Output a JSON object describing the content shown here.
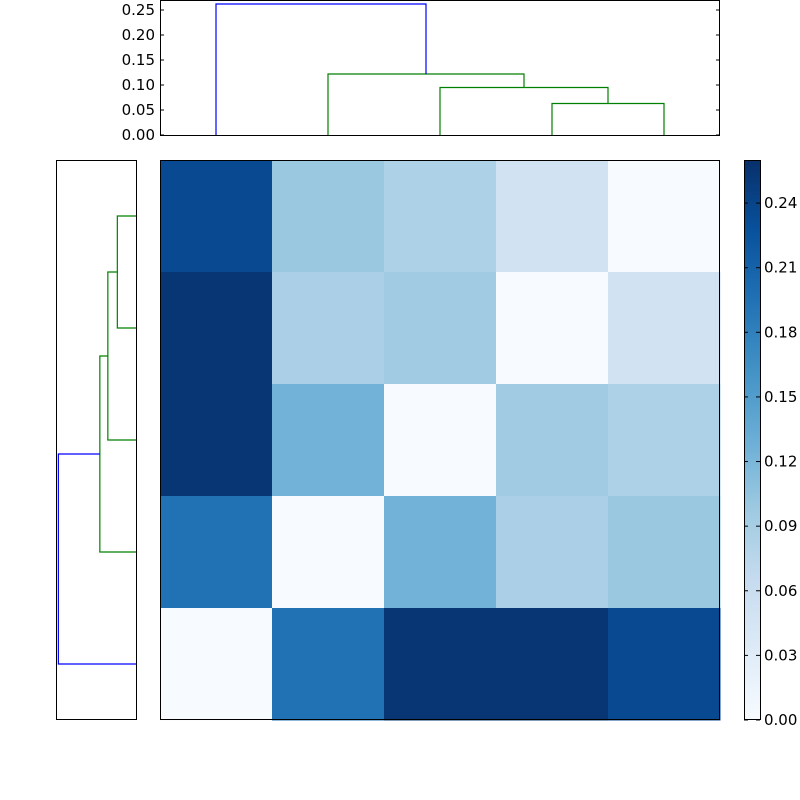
{
  "chart_data": {
    "type": "heatmap",
    "description_free": true,
    "matrix": [
      [
        0.235,
        0.1,
        0.085,
        0.05,
        0.0
      ],
      [
        0.255,
        0.087,
        0.095,
        0.0,
        0.05
      ],
      [
        0.255,
        0.125,
        0.0,
        0.095,
        0.085
      ],
      [
        0.195,
        0.0,
        0.125,
        0.087,
        0.1
      ],
      [
        0.0,
        0.195,
        0.255,
        0.255,
        0.235
      ]
    ],
    "colorbar": {
      "min": 0,
      "max": 0.26,
      "ticks": [
        0.0,
        0.03,
        0.06,
        0.09,
        0.12,
        0.15,
        0.18,
        0.21,
        0.24
      ],
      "tick_labels": [
        "0.00",
        "0.03",
        "0.06",
        "0.09",
        "0.12",
        "0.15",
        "0.18",
        "0.21",
        "0.24"
      ],
      "colormap": [
        "#f7fbff",
        "#deebf7",
        "#c6dbef",
        "#9ecae1",
        "#6baed6",
        "#4292c6",
        "#2171b5",
        "#08519c",
        "#08306b"
      ]
    },
    "top_dendrogram": {
      "ylim": [
        0,
        0.27
      ],
      "ticks": [
        0.0,
        0.05,
        0.1,
        0.15,
        0.2,
        0.25
      ],
      "tick_labels": [
        "0.00",
        "0.05",
        "0.10",
        "0.15",
        "0.20",
        "0.25"
      ],
      "links": [
        {
          "left": 3,
          "right": 4,
          "height": 0.063,
          "left_base": 0,
          "right_base": 0,
          "color": "#008000"
        },
        {
          "left": 2,
          "right": 3.5,
          "height": 0.095,
          "left_base": 0,
          "right_base": 0.063,
          "color": "#008000"
        },
        {
          "left": 1,
          "right": 2.75,
          "height": 0.122,
          "left_base": 0,
          "right_base": 0.095,
          "color": "#008000"
        },
        {
          "left": 0,
          "right": 1.875,
          "height": 0.262,
          "left_base": 0,
          "right_base": 0.122,
          "color": "#0000ff"
        }
      ]
    },
    "left_dendrogram": {
      "links": [
        {
          "top": 0,
          "bottom": 1,
          "height": 0.063,
          "top_base": 0,
          "bottom_base": 0,
          "color": "#008000"
        },
        {
          "top": 0.5,
          "bottom": 2,
          "height": 0.095,
          "top_base": 0.063,
          "bottom_base": 0,
          "color": "#008000"
        },
        {
          "top": 1.25,
          "bottom": 3,
          "height": 0.122,
          "top_base": 0.095,
          "bottom_base": 0,
          "color": "#008000"
        },
        {
          "top": 2.125,
          "bottom": 4,
          "height": 0.262,
          "top_base": 0.122,
          "bottom_base": 0,
          "color": "#0000ff"
        }
      ]
    }
  }
}
